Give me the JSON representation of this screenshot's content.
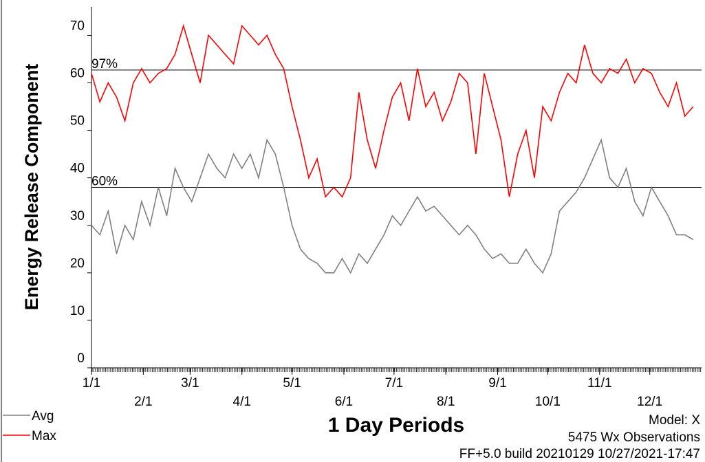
{
  "chart_data": {
    "type": "line",
    "ylabel": "Energy Release Component",
    "xlabel": "1 Day Periods",
    "annotations": [
      "Model: X",
      "5475 Wx Observations",
      "FF+5.0 build 20210129 10/27/2021-17:47"
    ],
    "xlim": [
      1,
      366
    ],
    "xticks": [
      {
        "value": 1,
        "label": "1/1"
      },
      {
        "value": 32,
        "label": "2/1"
      },
      {
        "value": 60,
        "label": "3/1"
      },
      {
        "value": 91,
        "label": "4/1"
      },
      {
        "value": 121,
        "label": "5/1"
      },
      {
        "value": 152,
        "label": "6/1"
      },
      {
        "value": 182,
        "label": "7/1"
      },
      {
        "value": 213,
        "label": "8/1"
      },
      {
        "value": 244,
        "label": "9/1"
      },
      {
        "value": 274,
        "label": "10/1"
      },
      {
        "value": 305,
        "label": "11/1"
      },
      {
        "value": 335,
        "label": "12/1"
      }
    ],
    "ylim": [
      0,
      76
    ],
    "yticks": [
      0,
      10,
      20,
      30,
      40,
      50,
      60,
      70
    ],
    "ref_lines": [
      {
        "label": "97%",
        "value": 62.7
      },
      {
        "label": "60%",
        "value": 38
      }
    ],
    "x": [
      1,
      6,
      11,
      16,
      21,
      26,
      31,
      36,
      41,
      46,
      51,
      56,
      61,
      66,
      71,
      76,
      81,
      86,
      91,
      96,
      101,
      106,
      111,
      116,
      121,
      126,
      131,
      136,
      141,
      146,
      151,
      156,
      161,
      166,
      171,
      176,
      181,
      186,
      191,
      196,
      201,
      206,
      211,
      216,
      221,
      226,
      231,
      236,
      241,
      246,
      251,
      256,
      261,
      266,
      271,
      276,
      281,
      286,
      291,
      296,
      301,
      306,
      311,
      316,
      321,
      326,
      331,
      336,
      341,
      346,
      351,
      356,
      361
    ],
    "series": [
      {
        "name": "Avg",
        "color": "#808080",
        "values": [
          30,
          28,
          33,
          24,
          30,
          27,
          35,
          30,
          38,
          32,
          42,
          38,
          35,
          40,
          45,
          42,
          40,
          45,
          42,
          45,
          40,
          48,
          45,
          38,
          30,
          25,
          23,
          22,
          20,
          20,
          23,
          20,
          24,
          22,
          25,
          28,
          32,
          30,
          33,
          36,
          33,
          34,
          32,
          30,
          28,
          30,
          28,
          25,
          23,
          24,
          22,
          22,
          25,
          22,
          20,
          24,
          33,
          35,
          37,
          40,
          44,
          48,
          40,
          38,
          42,
          35,
          32,
          38,
          35,
          32,
          28,
          28,
          27
        ]
      },
      {
        "name": "Max",
        "color": "#ff0000",
        "values": [
          62,
          56,
          60,
          57,
          52,
          60,
          63,
          60,
          62,
          63,
          66,
          72,
          66,
          60,
          70,
          68,
          66,
          64,
          72,
          70,
          68,
          70,
          66,
          63,
          55,
          48,
          40,
          44,
          36,
          38,
          36,
          40,
          58,
          48,
          42,
          50,
          57,
          60,
          52,
          63,
          55,
          58,
          52,
          56,
          62,
          60,
          45,
          62,
          55,
          48,
          36,
          45,
          50,
          40,
          55,
          52,
          58,
          62,
          60,
          68,
          62,
          60,
          63,
          62,
          65,
          60,
          63,
          62,
          58,
          55,
          60,
          53,
          55
        ]
      }
    ]
  }
}
